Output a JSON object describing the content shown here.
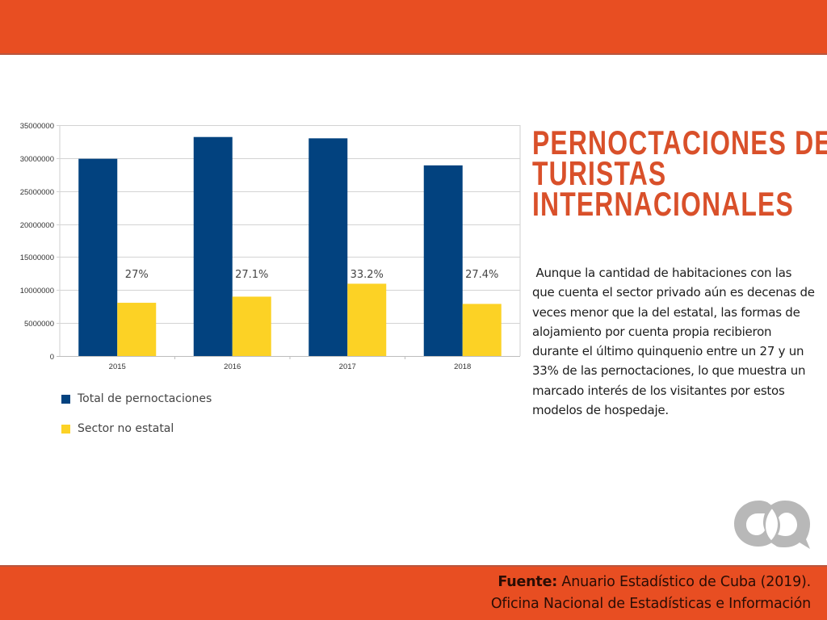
{
  "banner": {
    "color": "#E84E22"
  },
  "title": {
    "lines": [
      "PERNOCTACIONES DE",
      "TURISTAS",
      "INTERNACIONALES"
    ],
    "color": "#D9502A"
  },
  "body_text": " Aunque la cantidad de habitaciones con las que cuenta el sector privado aún es decenas de veces menor que la del estatal, las formas de alojamiento por cuenta propia recibieron durante el último quinquenio entre un 27 y un 33% de las pernoctaciones, lo que muestra un marcado interés de los visitantes por estos modelos de hospedaje.",
  "footer": {
    "source_label": "Fuente:",
    "source_line1": " Anuario Estadístico de Cuba (2019).",
    "source_line2": "Oficina Nacional de Estadísticas e Información"
  },
  "logo": {
    "icon": "chat-bubbles-logo-icon",
    "color": "#b8b8b8"
  },
  "legend": [
    {
      "label": "Total de pernoctaciones",
      "color": "#02427F"
    },
    {
      "label": "Sector no estatal",
      "color": "#FCD225"
    }
  ],
  "chart_data": {
    "type": "bar",
    "title": "",
    "xlabel": "",
    "ylabel": "",
    "categories": [
      "2015",
      "2016",
      "2017",
      "2018"
    ],
    "series": [
      {
        "name": "Total de pernoctaciones",
        "color": "#02427F",
        "values": [
          29900000,
          33200000,
          33000000,
          28900000
        ]
      },
      {
        "name": "Sector no estatal",
        "color": "#FCD225",
        "values": [
          8070000,
          9000000,
          10960000,
          7900000
        ]
      }
    ],
    "data_labels": [
      "27%",
      "27.1%",
      "33.2%",
      "27.4%"
    ],
    "ylim": [
      0,
      35000000
    ],
    "yticks": [
      0,
      5000000,
      10000000,
      15000000,
      20000000,
      25000000,
      30000000,
      35000000
    ],
    "ytick_labels": [
      "0",
      "5000000",
      "10000000",
      "15000000",
      "20000000",
      "25000000",
      "30000000",
      "35000000"
    ],
    "grid": true,
    "legend_position": "bottom-left"
  }
}
